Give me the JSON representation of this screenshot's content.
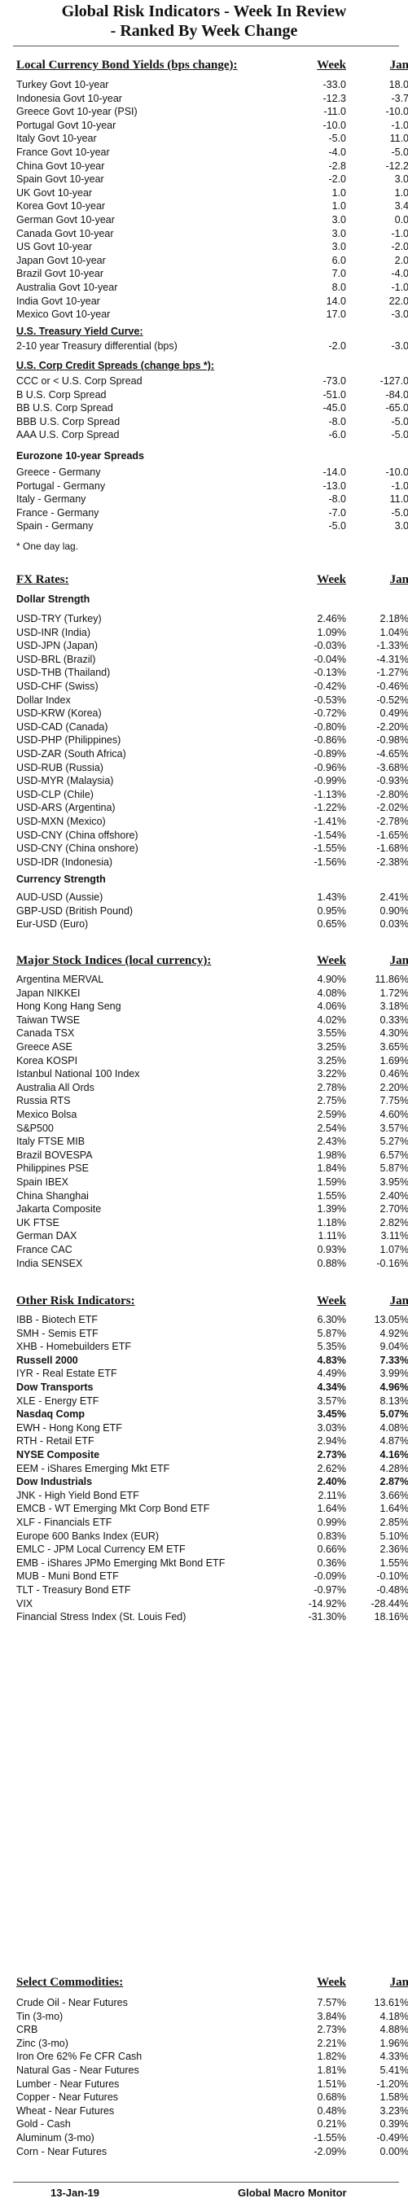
{
  "title": {
    "line1": "Global Risk Indicators - Week In Review",
    "line2": "- Ranked By Week Change"
  },
  "columns": {
    "week": "Week",
    "jan": "Jan"
  },
  "bond_yields": {
    "heading": "Local Currency Bond Yields (bps change):",
    "rows": [
      {
        "label": "Turkey Govt 10-year",
        "week": "-33.0",
        "jan": "18.0"
      },
      {
        "label": "Indonesia Govt 10-year",
        "week": "-12.3",
        "jan": "-3.7"
      },
      {
        "label": "Greece Govt 10-year (PSI)",
        "week": "-11.0",
        "jan": "-10.0"
      },
      {
        "label": "Portugal Govt 10-year",
        "week": "-10.0",
        "jan": "-1.0"
      },
      {
        "label": "Italy Govt 10-year",
        "week": "-5.0",
        "jan": "11.0"
      },
      {
        "label": "France Govt 10-year",
        "week": "-4.0",
        "jan": "-5.0"
      },
      {
        "label": "China Govt 10-year",
        "week": "-2.8",
        "jan": "-12.2"
      },
      {
        "label": "Spain Govt 10-year",
        "week": "-2.0",
        "jan": "3.0"
      },
      {
        "label": "UK Govt 10-year",
        "week": "1.0",
        "jan": "1.0"
      },
      {
        "label": "Korea Govt 10-year",
        "week": "1.0",
        "jan": "3.4"
      },
      {
        "label": "German Govt 10-year",
        "week": "3.0",
        "jan": "0.0"
      },
      {
        "label": "Canada Govt 10-year",
        "week": "3.0",
        "jan": "-1.0"
      },
      {
        "label": "US Govt 10-year",
        "week": "3.0",
        "jan": "-2.0"
      },
      {
        "label": "Japan Govt 10-year",
        "week": "6.0",
        "jan": "2.0"
      },
      {
        "label": "Brazil Govt 10-year",
        "week": "7.0",
        "jan": "-4.0"
      },
      {
        "label": "Australia Govt 10-year",
        "week": "8.0",
        "jan": "-1.0"
      },
      {
        "label": "India Govt 10-year",
        "week": "14.0",
        "jan": "22.0"
      },
      {
        "label": "Mexico Govt 10-year",
        "week": "17.0",
        "jan": "-3.0"
      }
    ]
  },
  "yield_curve": {
    "heading": "U.S. Treasury Yield Curve:",
    "rows": [
      {
        "label": "2-10 year Treasury differential (bps)",
        "week": "-2.0",
        "jan": "-3.0"
      }
    ]
  },
  "corp_spreads": {
    "heading": "U.S. Corp Credit Spreads (change bps *):",
    "rows": [
      {
        "label": "CCC or < U.S. Corp Spread",
        "week": "-73.0",
        "jan": "-127.0"
      },
      {
        "label": "B U.S. Corp Spread",
        "week": "-51.0",
        "jan": "-84.0"
      },
      {
        "label": "BB U.S. Corp Spread",
        "week": "-45.0",
        "jan": "-65.0"
      },
      {
        "label": "BBB U.S. Corp Spread",
        "week": "-8.0",
        "jan": "-5.0"
      },
      {
        "label": "AAA U.S. Corp Spread",
        "week": "-6.0",
        "jan": "-5.0"
      }
    ]
  },
  "eurozone_spreads": {
    "heading": "Eurozone 10-year Spreads",
    "rows": [
      {
        "label": "Greece - Germany",
        "week": "-14.0",
        "jan": "-10.0"
      },
      {
        "label": "Portugal - Germany",
        "week": "-13.0",
        "jan": "-1.0"
      },
      {
        "label": "Italy - Germany",
        "week": "-8.0",
        "jan": "11.0"
      },
      {
        "label": "France - Germany",
        "week": "-7.0",
        "jan": "-5.0"
      },
      {
        "label": "Spain - Germany",
        "week": "-5.0",
        "jan": "3.0"
      }
    ],
    "note": "* One day lag."
  },
  "fx": {
    "heading": "FX Rates:",
    "dollar_strength": "Dollar Strength",
    "rows": [
      {
        "label": "USD-TRY (Turkey)",
        "week": "2.46%",
        "jan": "2.18%"
      },
      {
        "label": "USD-INR (India)",
        "week": "1.09%",
        "jan": "1.04%"
      },
      {
        "label": "USD-JPN (Japan)",
        "week": "-0.03%",
        "jan": "-1.33%"
      },
      {
        "label": "USD-BRL (Brazil)",
        "week": "-0.04%",
        "jan": "-4.31%"
      },
      {
        "label": "USD-THB  (Thailand)",
        "week": "-0.13%",
        "jan": "-1.27%"
      },
      {
        "label": "USD-CHF (Swiss)",
        "week": "-0.42%",
        "jan": "-0.46%"
      },
      {
        "label": "Dollar Index",
        "week": "-0.53%",
        "jan": "-0.52%"
      },
      {
        "label": "USD-KRW (Korea)",
        "week": "-0.72%",
        "jan": "0.49%"
      },
      {
        "label": "USD-CAD (Canada)",
        "week": "-0.80%",
        "jan": "-2.20%"
      },
      {
        "label": "USD-PHP (Philippines)",
        "week": "-0.86%",
        "jan": "-0.98%"
      },
      {
        "label": "USD-ZAR (South Africa)",
        "week": "-0.89%",
        "jan": "-4.65%"
      },
      {
        "label": "USD-RUB (Russia)",
        "week": "-0.96%",
        "jan": "-3.68%"
      },
      {
        "label": "USD-MYR (Malaysia)",
        "week": "-0.99%",
        "jan": "-0.93%"
      },
      {
        "label": "USD-CLP (Chile)",
        "week": "-1.13%",
        "jan": "-2.80%"
      },
      {
        "label": "USD-ARS (Argentina)",
        "week": "-1.22%",
        "jan": "-2.02%"
      },
      {
        "label": "USD-MXN  (Mexico)",
        "week": "-1.41%",
        "jan": "-2.78%"
      },
      {
        "label": "USD-CNY (China offshore)",
        "week": "-1.54%",
        "jan": "-1.65%"
      },
      {
        "label": "USD-CNY (China onshore)",
        "week": "-1.55%",
        "jan": "-1.68%"
      },
      {
        "label": "USD-IDR (Indonesia)",
        "week": "-1.56%",
        "jan": "-2.38%"
      }
    ],
    "currency_strength": "Currency Strength",
    "rows2": [
      {
        "label": "AUD-USD (Aussie)",
        "week": "1.43%",
        "jan": "2.41%"
      },
      {
        "label": "GBP-USD (British Pound)",
        "week": "0.95%",
        "jan": "0.90%"
      },
      {
        "label": "Eur-USD (Euro)",
        "week": "0.65%",
        "jan": "0.03%"
      }
    ]
  },
  "stocks": {
    "heading": "Major Stock Indices (local currency):",
    "rows": [
      {
        "label": "Argentina MERVAL",
        "week": "4.90%",
        "jan": "11.86%"
      },
      {
        "label": "Japan NIKKEI",
        "week": "4.08%",
        "jan": "1.72%"
      },
      {
        "label": "Hong Kong Hang Seng",
        "week": "4.06%",
        "jan": "3.18%"
      },
      {
        "label": "Taiwan  TWSE",
        "week": "4.02%",
        "jan": "0.33%"
      },
      {
        "label": "Canada TSX",
        "week": "3.55%",
        "jan": "4.30%"
      },
      {
        "label": "Greece ASE",
        "week": "3.25%",
        "jan": "3.65%"
      },
      {
        "label": "Korea KOSPI",
        "week": "3.25%",
        "jan": "1.69%"
      },
      {
        "label": "Istanbul National 100 Index",
        "week": "3.22%",
        "jan": "0.46%"
      },
      {
        "label": "Australia All Ords",
        "week": "2.78%",
        "jan": "2.20%"
      },
      {
        "label": "Russia RTS",
        "week": "2.75%",
        "jan": "7.75%"
      },
      {
        "label": "Mexico Bolsa",
        "week": "2.59%",
        "jan": "4.60%"
      },
      {
        "label": "S&P500",
        "week": "2.54%",
        "jan": "3.57%"
      },
      {
        "label": "Italy FTSE MIB",
        "week": "2.43%",
        "jan": "5.27%"
      },
      {
        "label": "Brazil BOVESPA",
        "week": "1.98%",
        "jan": "6.57%"
      },
      {
        "label": "Philippines PSE",
        "week": "1.84%",
        "jan": "5.87%"
      },
      {
        "label": "Spain IBEX",
        "week": "1.59%",
        "jan": "3.95%"
      },
      {
        "label": "China Shanghai",
        "week": "1.55%",
        "jan": "2.40%"
      },
      {
        "label": "Jakarta Composite",
        "week": "1.39%",
        "jan": "2.70%"
      },
      {
        "label": "UK FTSE",
        "week": "1.18%",
        "jan": "2.82%"
      },
      {
        "label": "German DAX",
        "week": "1.11%",
        "jan": "3.11%"
      },
      {
        "label": "France CAC",
        "week": "0.93%",
        "jan": "1.07%"
      },
      {
        "label": "India SENSEX",
        "week": "0.88%",
        "jan": "-0.16%"
      }
    ]
  },
  "other_risk": {
    "heading": "Other Risk Indicators:",
    "rows": [
      {
        "label": "IBB - Biotech ETF",
        "week": "6.30%",
        "jan": "13.05%",
        "bold": false
      },
      {
        "label": "SMH - Semis ETF",
        "week": "5.87%",
        "jan": "4.92%",
        "bold": false
      },
      {
        "label": "XHB - Homebuilders ETF",
        "week": "5.35%",
        "jan": "9.04%",
        "bold": false
      },
      {
        "label": "Russell 2000",
        "week": "4.83%",
        "jan": "7.33%",
        "bold": true
      },
      {
        "label": "IYR - Real Estate ETF",
        "week": "4.49%",
        "jan": "3.99%",
        "bold": false
      },
      {
        "label": "Dow Transports",
        "week": "4.34%",
        "jan": "4.96%",
        "bold": true
      },
      {
        "label": "XLE - Energy ETF",
        "week": "3.57%",
        "jan": "8.13%",
        "bold": false
      },
      {
        "label": "Nasdaq Comp",
        "week": "3.45%",
        "jan": "5.07%",
        "bold": true
      },
      {
        "label": "EWH - Hong Kong ETF",
        "week": "3.03%",
        "jan": "4.08%",
        "bold": false
      },
      {
        "label": "RTH - Retail ETF",
        "week": "2.94%",
        "jan": "4.87%",
        "bold": false
      },
      {
        "label": "NYSE Composite",
        "week": "2.73%",
        "jan": "4.16%",
        "bold": true
      },
      {
        "label": "EEM - iShares Emerging Mkt ETF",
        "week": "2.62%",
        "jan": "4.28%",
        "bold": false
      },
      {
        "label": "Dow Industrials",
        "week": "2.40%",
        "jan": "2.87%",
        "bold": true
      },
      {
        "label": "JNK - High Yield Bond ETF",
        "week": "2.11%",
        "jan": "3.66%",
        "bold": false
      },
      {
        "label": "EMCB - WT Emerging Mkt Corp Bond ETF",
        "week": "1.64%",
        "jan": "1.64%",
        "bold": false
      },
      {
        "label": "XLF - Financials ETF",
        "week": "0.99%",
        "jan": "2.85%",
        "bold": false
      },
      {
        "label": "Europe 600 Banks Index (EUR)",
        "week": "0.83%",
        "jan": "5.10%",
        "bold": false
      },
      {
        "label": "EMLC - JPM Local Currency EM ETF",
        "week": "0.66%",
        "jan": "2.36%",
        "bold": false
      },
      {
        "label": "EMB - iShares JPMo Emerging Mkt Bond ETF",
        "week": "0.36%",
        "jan": "1.55%",
        "bold": false
      },
      {
        "label": "MUB - Muni Bond ETF",
        "week": "-0.09%",
        "jan": "-0.10%",
        "bold": false
      },
      {
        "label": "TLT - Treasury Bond ETF",
        "week": "-0.97%",
        "jan": "-0.48%",
        "bold": false
      },
      {
        "label": "VIX",
        "week": "-14.92%",
        "jan": "-28.44%",
        "bold": false
      },
      {
        "label": "Financial Stress Index (St. Louis Fed)",
        "week": "-31.30%",
        "jan": "18.16%",
        "bold": false
      }
    ]
  },
  "commodities": {
    "heading": "Select Commodities:",
    "rows": [
      {
        "label": "Crude Oil - Near Futures",
        "week": "7.57%",
        "jan": "13.61%"
      },
      {
        "label": "Tin (3-mo)",
        "week": "3.84%",
        "jan": "4.18%"
      },
      {
        "label": "CRB",
        "week": "2.73%",
        "jan": "4.88%"
      },
      {
        "label": "Zinc (3-mo)",
        "week": "2.21%",
        "jan": "1.96%"
      },
      {
        "label": "Iron Ore 62% Fe CFR Cash",
        "week": "1.82%",
        "jan": "4.33%"
      },
      {
        "label": "Natural Gas - Near Futures",
        "week": "1.81%",
        "jan": "5.41%"
      },
      {
        "label": "Lumber - Near Futures",
        "week": "1.51%",
        "jan": "-1.20%"
      },
      {
        "label": "Copper - Near Futures",
        "week": "0.68%",
        "jan": "1.58%"
      },
      {
        "label": "Wheat - Near Futures",
        "week": "0.48%",
        "jan": "3.23%"
      },
      {
        "label": "Gold - Cash",
        "week": "0.21%",
        "jan": "0.39%"
      },
      {
        "label": "Aluminum (3-mo)",
        "week": "-1.55%",
        "jan": "-0.49%"
      },
      {
        "label": "Corn - Near Futures",
        "week": "-2.09%",
        "jan": "0.00%"
      }
    ]
  },
  "footer": {
    "date": "13-Jan-19",
    "brand": "Global Macro Monitor"
  }
}
